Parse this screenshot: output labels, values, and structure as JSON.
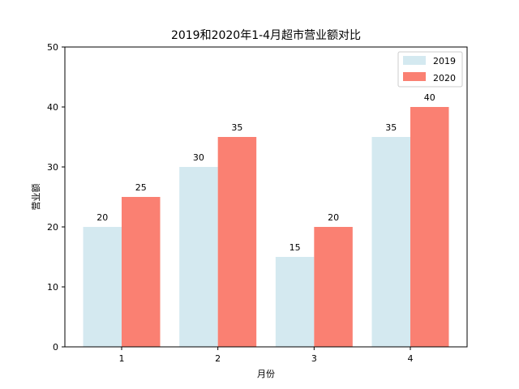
{
  "chart_data": {
    "type": "bar",
    "title": "2019和2020年1-4月超市营业额对比",
    "xlabel": "月份",
    "ylabel": "营业额",
    "categories": [
      "1",
      "2",
      "3",
      "4"
    ],
    "series": [
      {
        "name": "2019",
        "values": [
          20,
          30,
          15,
          35
        ],
        "color": "#d4e9f0"
      },
      {
        "name": "2020",
        "values": [
          25,
          35,
          20,
          40
        ],
        "color": "#fa8072"
      }
    ],
    "ylim": [
      0,
      50
    ],
    "yticks": [
      0,
      10,
      20,
      30,
      40,
      50
    ],
    "grid": false,
    "legend_position": "top-right",
    "data_labels": true
  }
}
